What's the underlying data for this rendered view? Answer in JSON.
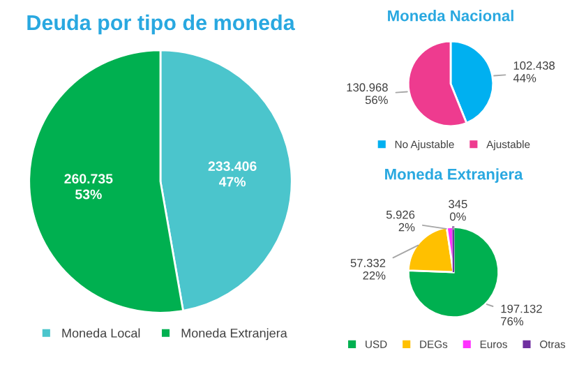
{
  "chart_data": [
    {
      "type": "pie",
      "title": "Deuda por tipo de moneda",
      "categories": [
        "Moneda Local",
        "Moneda Extranjera"
      ],
      "values": [
        233406,
        260735
      ],
      "colors": [
        "#4bc5cc",
        "#00b050"
      ],
      "value_labels": [
        "233.406\n47%",
        "260.735\n53%"
      ],
      "legend": "bottom"
    },
    {
      "type": "pie",
      "title": "Moneda Nacional",
      "categories": [
        "No Ajustable",
        "Ajustable"
      ],
      "values": [
        102438,
        130968
      ],
      "colors": [
        "#00b0f0",
        "#ee3b8f"
      ],
      "value_labels": [
        "102.438\n44%",
        "130.968\n56%"
      ],
      "legend": "bottom"
    },
    {
      "type": "pie",
      "title": "Moneda Extranjera",
      "categories": [
        "USD",
        "DEGs",
        "Euros",
        "Otras"
      ],
      "values": [
        197132,
        57332,
        5926,
        345
      ],
      "colors": [
        "#00b050",
        "#ffc000",
        "#ff33ff",
        "#7030a0"
      ],
      "value_labels": [
        "197.132\n76%",
        "57.332\n22%",
        "5.926\n2%",
        "345\n0%"
      ],
      "legend": "bottom"
    }
  ]
}
